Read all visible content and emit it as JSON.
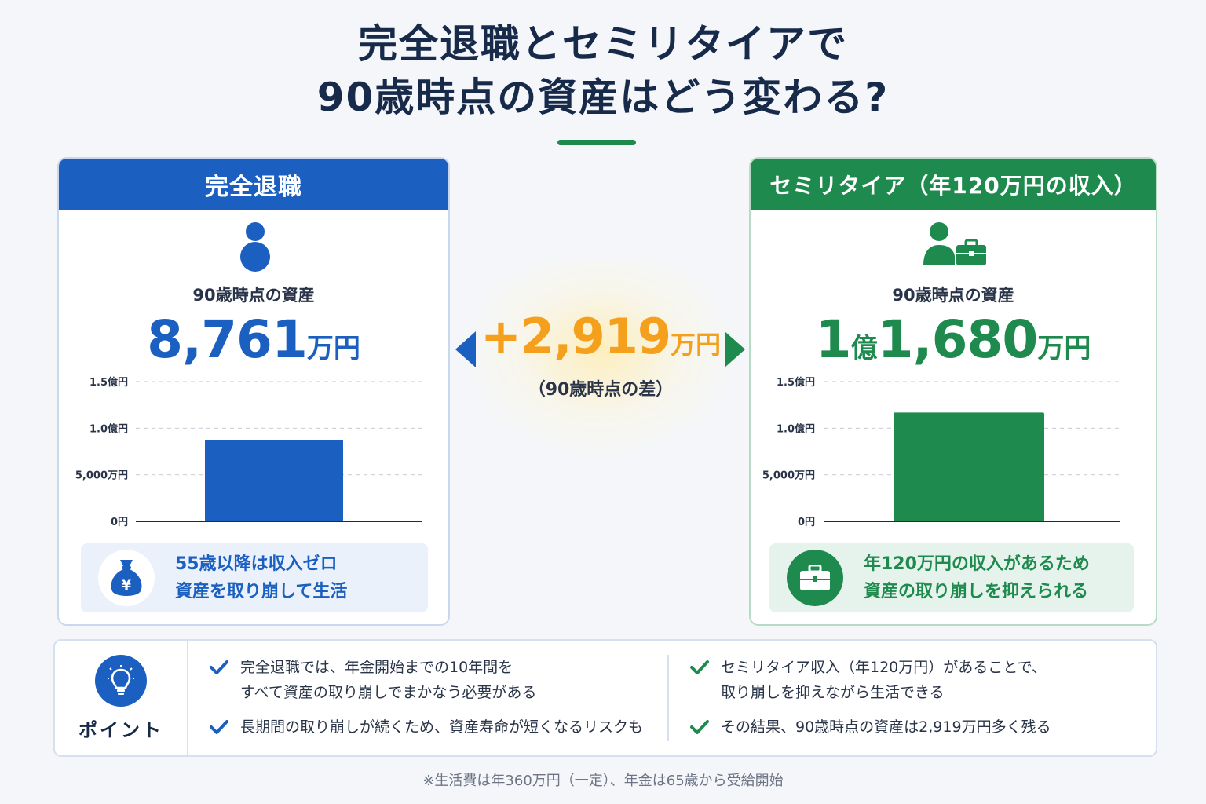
{
  "title": {
    "line1": "完全退職とセミリタイアで",
    "line2": "90歳時点の資産はどう変わる?"
  },
  "colors": {
    "blue": "#1b5fc1",
    "green": "#1e8a4e",
    "orange": "#f5a01c"
  },
  "left_panel": {
    "header": "完全退職",
    "icon": "person-icon",
    "asset_label": "90歳時点の資産",
    "asset_value": "8,761",
    "asset_unit": "万円",
    "note_icon": "money-bag-yen-icon",
    "note_line1": "55歳以降は収入ゼロ",
    "note_line2": "資産を取り崩して生活"
  },
  "right_panel": {
    "header": "セミリタイア（年120万円の収入）",
    "icon": "person-briefcase-icon",
    "asset_label": "90歳時点の資産",
    "asset_value_oku": "1",
    "asset_unit_oku": "億",
    "asset_value": "1,680",
    "asset_unit": "万円",
    "note_icon": "briefcase-icon",
    "note_line1": "年120万円の収入があるため",
    "note_line2": "資産の取り崩しを抑えられる"
  },
  "difference": {
    "value": "+2,919",
    "unit": "万円",
    "caption": "（90歳時点の差）"
  },
  "chart_data": [
    {
      "type": "bar",
      "categories": [
        ""
      ],
      "values": [
        8761
      ],
      "ylim": [
        0,
        15000
      ],
      "yticks": [
        0,
        5000,
        10000,
        15000
      ],
      "ytick_labels": [
        "0円",
        "5,000万円",
        "1.0億円",
        "1.5億円"
      ],
      "grid": true,
      "color": "#1b5fc1"
    },
    {
      "type": "bar",
      "categories": [
        ""
      ],
      "values": [
        11680
      ],
      "ylim": [
        0,
        15000
      ],
      "yticks": [
        0,
        5000,
        10000,
        15000
      ],
      "ytick_labels": [
        "0円",
        "5,000万円",
        "1.0億円",
        "1.5億円"
      ],
      "grid": true,
      "color": "#1e8a4e"
    }
  ],
  "points": {
    "title": "ポイント",
    "icon": "lightbulb-icon",
    "left": [
      {
        "line1": "完全退職では、年金開始までの10年間を",
        "line2": "すべて資産の取り崩しでまかなう必要がある"
      },
      {
        "line1": "長期間の取り崩しが続くため、資産寿命が短くなるリスクも",
        "line2": ""
      }
    ],
    "right": [
      {
        "line1": "セミリタイア収入（年120万円）があることで、",
        "line2": "取り崩しを抑えながら生活できる"
      },
      {
        "line1": "その結果、90歳時点の資産は2,919万円多く残る",
        "line2": ""
      }
    ]
  },
  "footnote": "※生活費は年360万円（一定）、年金は65歳から受給開始"
}
